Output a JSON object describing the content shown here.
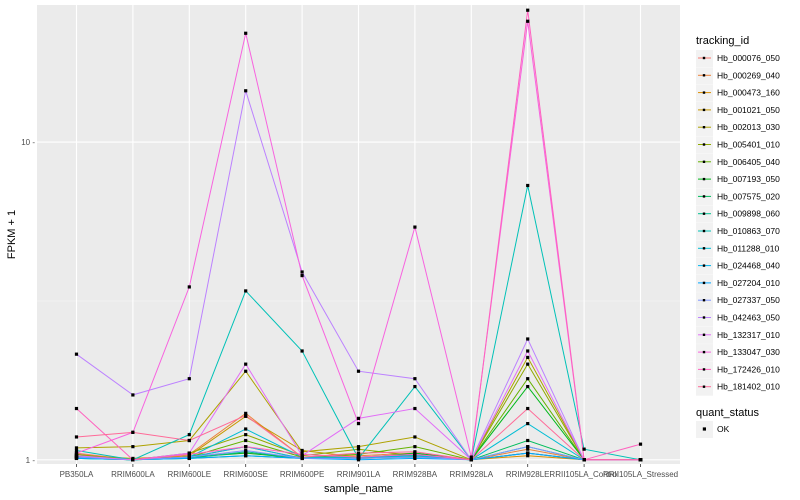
{
  "chart_data": {
    "type": "line",
    "title": "",
    "xlabel": "sample_name",
    "ylabel": "FPKM + 1",
    "y_scale": "log10",
    "ylim": [
      0.97,
      27
    ],
    "y_ticks": [
      1,
      10
    ],
    "y_tick_labels": [
      "1 -",
      "10 -"
    ],
    "grid": true,
    "legend_position": "right",
    "categories": [
      "PB350LA",
      "RRIM600LA",
      "RRIM600LE",
      "RRIM600SE",
      "RRIM600PE",
      "RRIM901LA",
      "RRIM928BA",
      "RRIM928LA",
      "RRIM928LE",
      "RRII105LA_Control",
      "RRII105LA_Stressed"
    ],
    "legend_title": "tracking_id",
    "series": [
      {
        "name": "Hb_000076_050",
        "color": "#F8766D",
        "values": [
          1.05,
          1.0,
          1.03,
          1.05,
          1.02,
          1.02,
          1.03,
          1.0,
          1.05,
          1.0,
          1.0
        ]
      },
      {
        "name": "Hb_000269_040",
        "color": "#EC8239",
        "values": [
          1.04,
          1.0,
          1.04,
          1.4,
          1.02,
          1.03,
          1.05,
          1.0,
          1.08,
          1.0,
          1.0
        ]
      },
      {
        "name": "Hb_000473_160",
        "color": "#DB8E00",
        "values": [
          1.02,
          1.0,
          1.02,
          1.1,
          1.01,
          1.01,
          1.02,
          1.0,
          1.03,
          1.0,
          1.0
        ]
      },
      {
        "name": "Hb_001021_050",
        "color": "#C79800",
        "values": [
          1.03,
          1.01,
          1.03,
          1.37,
          1.07,
          1.02,
          1.04,
          1.0,
          1.05,
          1.0,
          1.0
        ]
      },
      {
        "name": "Hb_002013_030",
        "color": "#AEA200",
        "values": [
          1.09,
          1.1,
          1.15,
          1.9,
          1.06,
          1.1,
          1.18,
          1.0,
          2.1,
          1.0,
          1.0
        ]
      },
      {
        "name": "Hb_005401_010",
        "color": "#8FAA00",
        "values": [
          1.04,
          1.0,
          1.05,
          1.2,
          1.03,
          1.08,
          1.03,
          1.0,
          2.0,
          1.0,
          1.0
        ]
      },
      {
        "name": "Hb_006405_040",
        "color": "#64B200",
        "values": [
          1.02,
          1.0,
          1.02,
          1.15,
          1.02,
          1.04,
          1.1,
          1.0,
          1.8,
          1.0,
          1.0
        ]
      },
      {
        "name": "Hb_007193_050",
        "color": "#00B81B",
        "values": [
          1.02,
          1.0,
          1.02,
          1.05,
          1.01,
          1.01,
          1.05,
          1.0,
          1.7,
          1.0,
          1.0
        ]
      },
      {
        "name": "Hb_007575_020",
        "color": "#00BD5C",
        "values": [
          1.01,
          1.0,
          1.01,
          1.03,
          1.01,
          1.01,
          1.02,
          1.0,
          1.15,
          1.0,
          1.0
        ]
      },
      {
        "name": "Hb_009898_060",
        "color": "#00C08E",
        "values": [
          1.01,
          1.0,
          1.01,
          1.06,
          1.01,
          1.02,
          1.03,
          1.0,
          1.1,
          1.0,
          1.0
        ]
      },
      {
        "name": "Hb_010863_070",
        "color": "#00C1B7",
        "values": [
          1.07,
          1.0,
          1.2,
          3.4,
          2.2,
          1.01,
          1.7,
          1.0,
          7.3,
          1.08,
          1.0
        ]
      },
      {
        "name": "Hb_011288_010",
        "color": "#00BDD4",
        "values": [
          1.03,
          1.0,
          1.02,
          1.25,
          1.02,
          1.02,
          1.04,
          1.0,
          1.3,
          1.0,
          1.0
        ]
      },
      {
        "name": "Hb_024468_040",
        "color": "#00B5EE",
        "values": [
          1.02,
          1.0,
          1.02,
          1.1,
          1.01,
          1.01,
          1.03,
          1.0,
          1.05,
          1.0,
          1.0
        ]
      },
      {
        "name": "Hb_027204_010",
        "color": "#00A7FF",
        "values": [
          1.01,
          1.0,
          1.01,
          1.03,
          1.01,
          1.0,
          1.01,
          1.0,
          1.05,
          1.0,
          1.0
        ]
      },
      {
        "name": "Hb_027337_050",
        "color": "#7F96FF",
        "values": [
          1.02,
          1.0,
          1.02,
          1.07,
          1.01,
          1.01,
          1.02,
          1.0,
          1.1,
          1.0,
          1.0
        ]
      },
      {
        "name": "Hb_042463_050",
        "color": "#BC81FF",
        "values": [
          2.15,
          1.6,
          1.8,
          14.5,
          3.9,
          1.9,
          1.8,
          1.0,
          2.4,
          1.0,
          1.0
        ]
      },
      {
        "name": "Hb_132317_010",
        "color": "#E26EF7",
        "values": [
          1.03,
          1.0,
          1.05,
          2.0,
          1.03,
          1.35,
          1.45,
          1.0,
          2.2,
          1.0,
          1.0
        ]
      },
      {
        "name": "Hb_133047_030",
        "color": "#F863DF",
        "values": [
          1.05,
          1.22,
          3.5,
          22.0,
          3.8,
          1.3,
          5.4,
          1.02,
          24.0,
          1.0,
          1.0
        ]
      },
      {
        "name": "Hb_172426_010",
        "color": "#FF62BF",
        "values": [
          1.45,
          1.0,
          1.04,
          1.1,
          1.04,
          1.02,
          1.04,
          1.0,
          26.0,
          1.0,
          1.12
        ]
      },
      {
        "name": "Hb_181402_010",
        "color": "#FF6A98",
        "values": [
          1.18,
          1.22,
          1.15,
          1.38,
          1.02,
          1.05,
          1.06,
          1.0,
          1.45,
          1.0,
          1.0
        ]
      }
    ],
    "shape_legend": {
      "title": "quant_status",
      "items": [
        "OK"
      ]
    }
  }
}
